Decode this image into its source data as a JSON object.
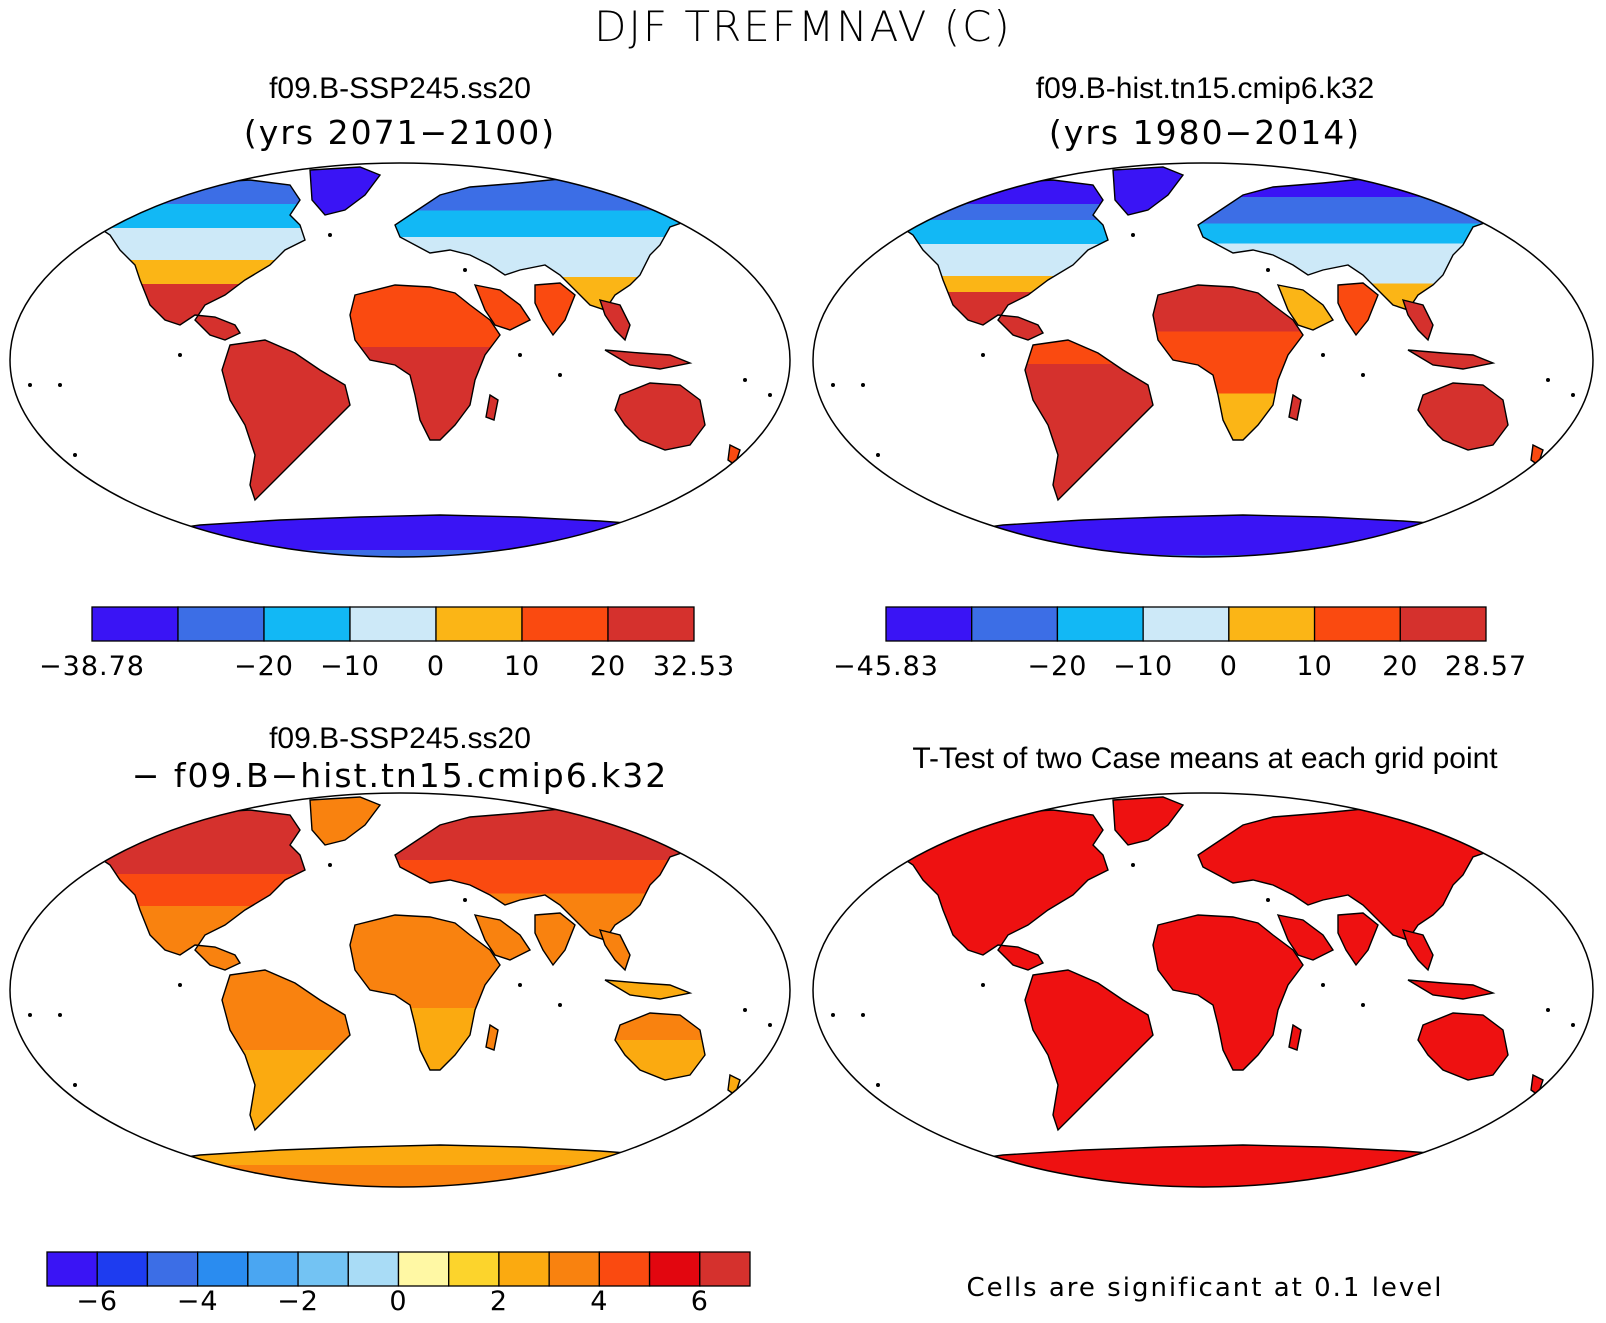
{
  "title": "DJF TREFMNAV (C)",
  "panels": [
    {
      "id": "ssp",
      "title": "f09.B-SSP245.ss20",
      "subtitle": "(yrs 2071−2100)",
      "type": "abs"
    },
    {
      "id": "hist",
      "title": "f09.B-hist.tn15.cmip6.k32",
      "subtitle": "(yrs 1980−2014)",
      "type": "abs"
    },
    {
      "id": "diff",
      "title": "f09.B-SSP245.ss20",
      "subtitle": "− f09.B−hist.tn15.cmip6.k32",
      "type": "diff"
    },
    {
      "id": "ttest",
      "title": "T-Test of two Case means at each grid point",
      "subtitle": "",
      "type": "ttest"
    }
  ],
  "colorbars": {
    "ssp": {
      "colors": [
        "#3a14f5",
        "#3c6ee6",
        "#12b8f5",
        "#cde9f8",
        "#fbb516",
        "#fa4a10",
        "#d5312d"
      ],
      "labels": [
        "−38.78",
        "−20",
        "−10",
        "0",
        "10",
        "20",
        "32.53"
      ],
      "label_positions": [
        0,
        2,
        3,
        4,
        5,
        6,
        7
      ]
    },
    "hist": {
      "colors": [
        "#3a14f5",
        "#3c6ee6",
        "#12b8f5",
        "#cde9f8",
        "#fbb516",
        "#fa4a10",
        "#d5312d"
      ],
      "labels": [
        "−45.83",
        "−20",
        "−10",
        "0",
        "10",
        "20",
        "28.57"
      ],
      "label_positions": [
        0,
        2,
        3,
        4,
        5,
        6,
        7
      ]
    },
    "diff": {
      "colors": [
        "#3a14f5",
        "#1e3cf0",
        "#3c6ee6",
        "#2a8cf0",
        "#4aa6f2",
        "#73c3f3",
        "#a9dcf6",
        "#fff8a4",
        "#fcd42c",
        "#fbaa10",
        "#f9820f",
        "#fa4a10",
        "#e2060f",
        "#d5312d"
      ],
      "labels": [
        "−6",
        "−4",
        "−2",
        "0",
        "2",
        "4",
        "6"
      ],
      "label_positions": [
        1,
        3,
        5,
        7,
        9,
        11,
        13
      ]
    }
  },
  "footnote": "Cells are significant at 0.1 level",
  "map_colors": {
    "ttest_fill": "#ee1111",
    "land_outline": "#000000"
  }
}
